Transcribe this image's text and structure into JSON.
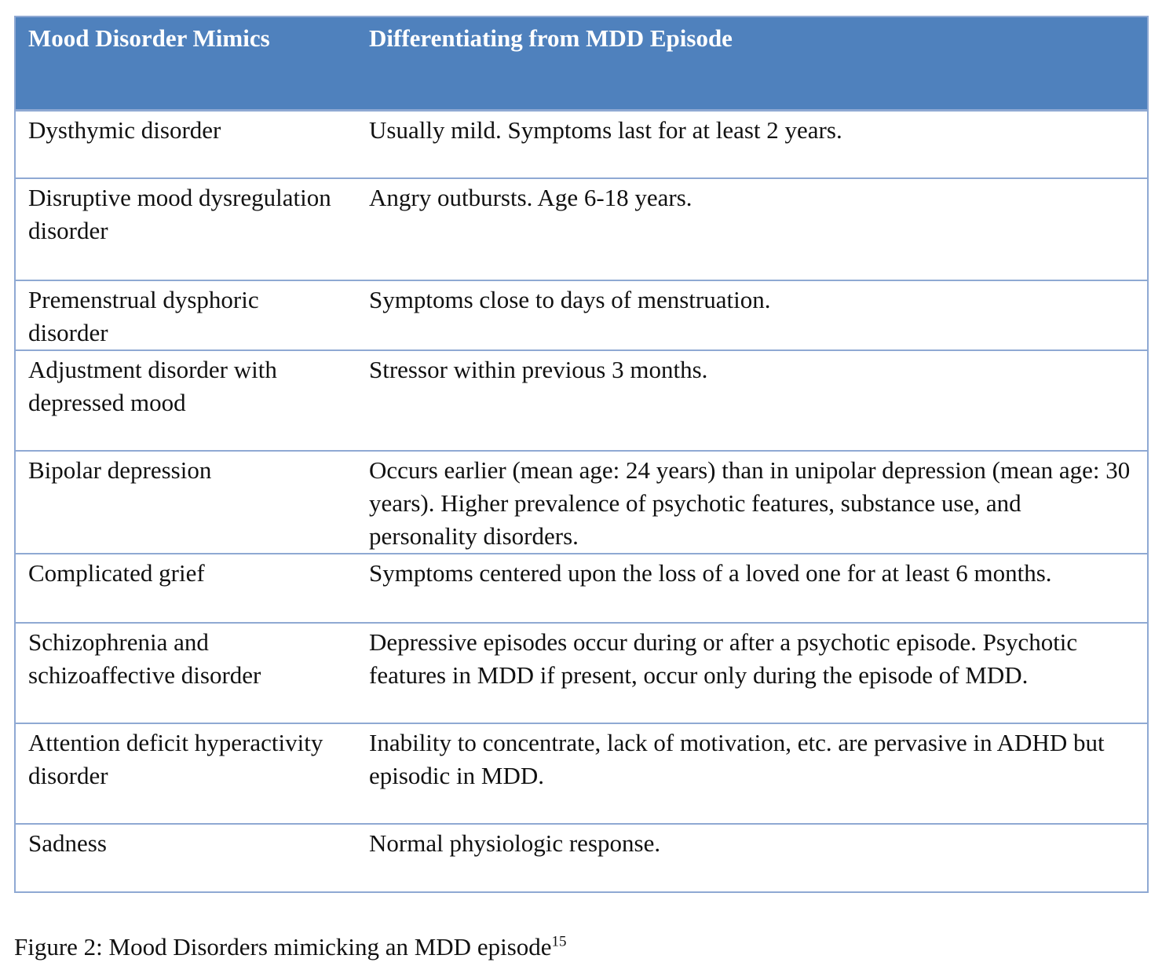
{
  "table": {
    "headers": [
      "Mood Disorder Mimics",
      "Differentiating from MDD Episode"
    ],
    "rows": [
      {
        "mimic": "Dysthymic disorder",
        "difference": "Usually mild. Symptoms last for at least 2 years."
      },
      {
        "mimic": "Disruptive mood dysregulation disorder",
        "difference": "Angry outbursts. Age 6-18 years."
      },
      {
        "mimic": "Premenstrual dysphoric disorder",
        "difference": "Symptoms close to days of menstruation."
      },
      {
        "mimic": "Adjustment disorder with depressed mood",
        "difference": "Stressor within previous 3 months."
      },
      {
        "mimic": "Bipolar depression",
        "difference": "Occurs earlier (mean age: 24 years) than in unipolar depression (mean age: 30 years). Higher prevalence of psychotic features, substance use, and personality disorders."
      },
      {
        "mimic": "Complicated grief",
        "difference": "Symptoms centered upon the loss of a loved one for at least 6 months."
      },
      {
        "mimic": "Schizophrenia and schizoaffective disorder",
        "difference": "Depressive episodes occur during or after a psychotic episode. Psychotic features in MDD if present, occur only during the episode of MDD."
      },
      {
        "mimic": "Attention deficit hyperactivity disorder",
        "difference": "Inability to concentrate, lack of motivation, etc. are pervasive in ADHD but episodic in MDD."
      },
      {
        "mimic": "Sadness",
        "difference": "Normal physiologic response."
      }
    ]
  },
  "caption": {
    "text": "Figure 2: Mood Disorders mimicking an MDD episode",
    "superscript": "15"
  },
  "colors": {
    "header_bg": "#4f81bd",
    "border": "#8fa9d3"
  }
}
